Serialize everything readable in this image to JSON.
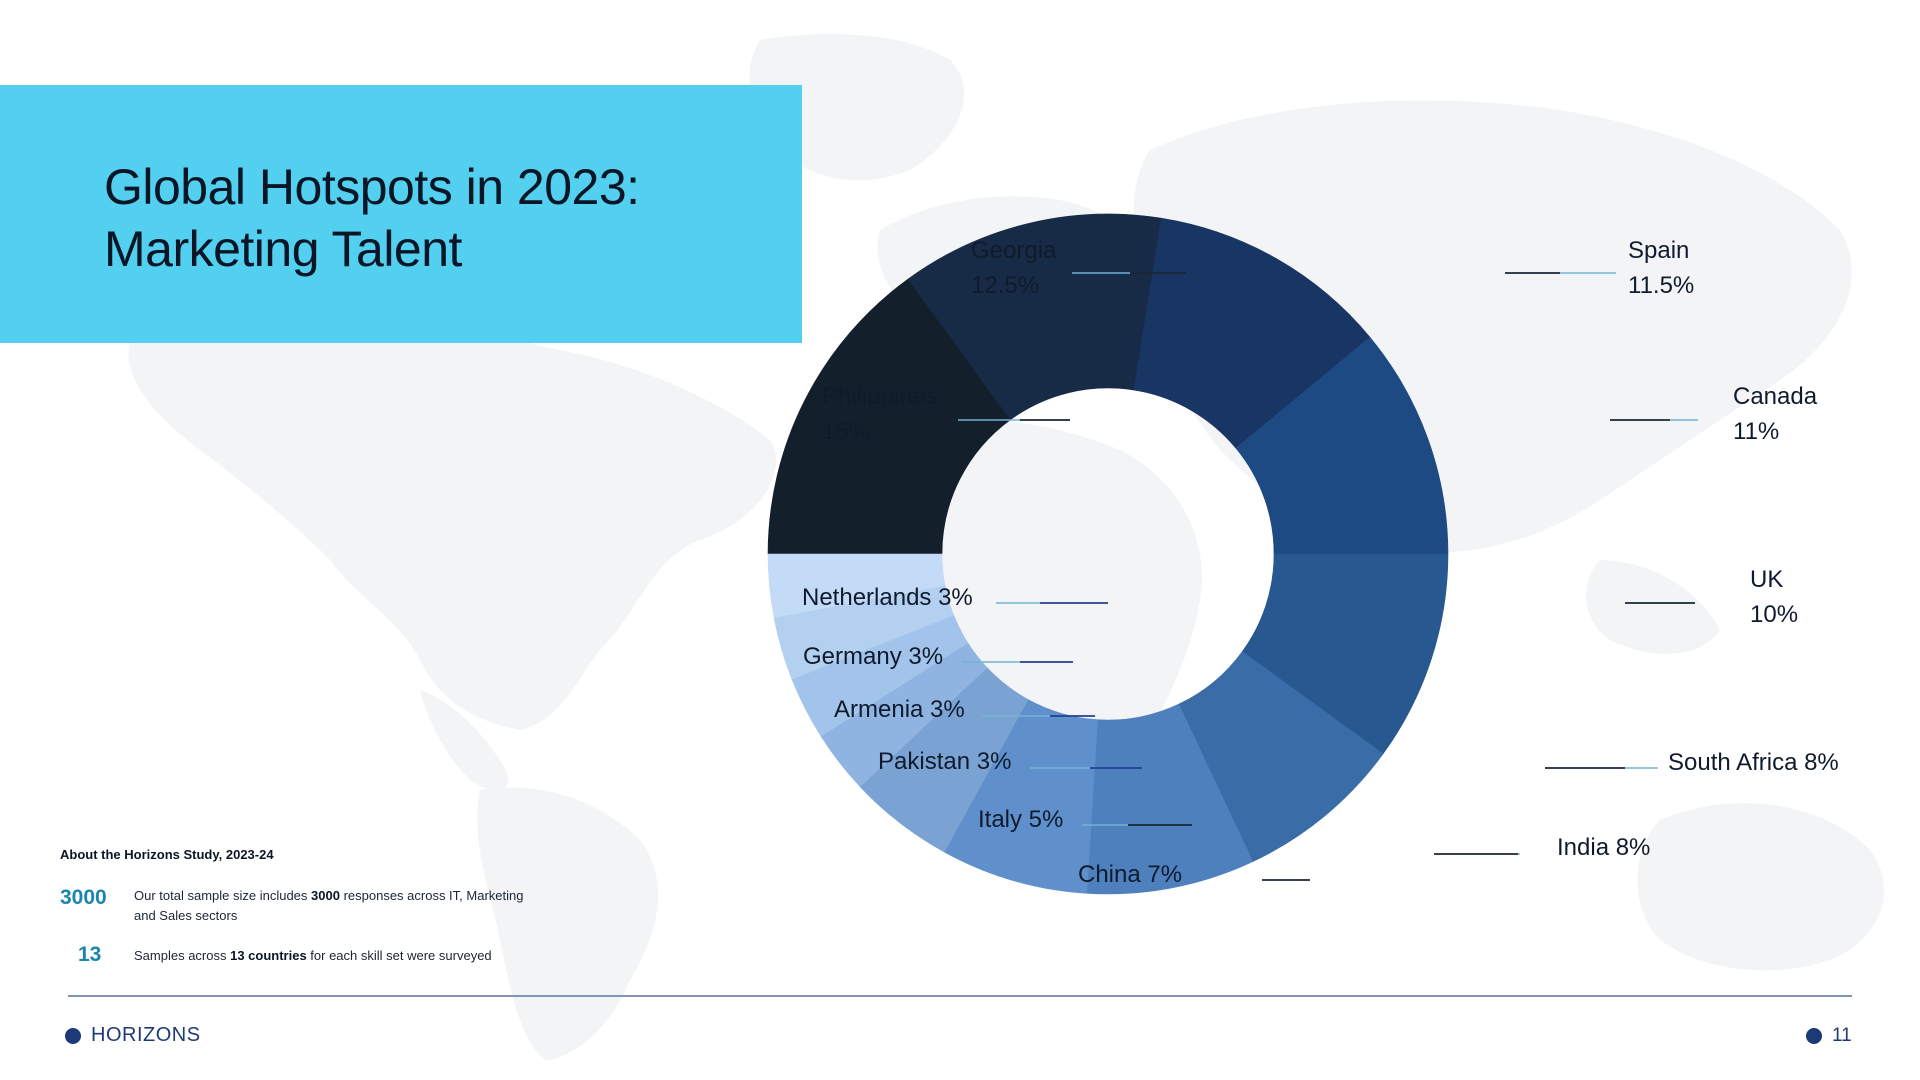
{
  "slide": {
    "title_line_1": "Global Hotspots in 2023:",
    "title_line_2": "Marketing Talent"
  },
  "colors": {
    "title_band": "#53cfef",
    "map": "#f3f4f6",
    "accent": "#1a86ad",
    "brand": "#1d3a78"
  },
  "chart_data": {
    "type": "pie",
    "variant": "donut",
    "title": "",
    "slices": [
      {
        "label": "Philippines",
        "value_label": "15%",
        "value": 15,
        "color": "#141f2c"
      },
      {
        "label": "Georgia",
        "value_label": "12.5%",
        "value": 12.5,
        "color": "#172a46"
      },
      {
        "label": "Spain",
        "value_label": "11.5%",
        "value": 11.5,
        "color": "#183564"
      },
      {
        "label": "Canada",
        "value_label": "11%",
        "value": 11,
        "color": "#1e4a84"
      },
      {
        "label": "UK",
        "value_label": "10%",
        "value": 10,
        "color": "#285890"
      },
      {
        "label": "South Africa",
        "value_label": "8%",
        "value": 8,
        "color": "#3a6ca8"
      },
      {
        "label": "India",
        "value_label": "8%",
        "value": 8,
        "color": "#4f80be"
      },
      {
        "label": "China",
        "value_label": "7%",
        "value": 7,
        "color": "#6090cb"
      },
      {
        "label": "Italy",
        "value_label": "5%",
        "value": 5,
        "color": "#7aa3d4"
      },
      {
        "label": "Pakistan",
        "value_label": "3%",
        "value": 3,
        "color": "#8fb4e1"
      },
      {
        "label": "Armenia",
        "value_label": "3%",
        "value": 3,
        "color": "#a2c3ea"
      },
      {
        "label": "Germany",
        "value_label": "3%",
        "value": 3,
        "color": "#b3d0f1"
      },
      {
        "label": "Netherlands",
        "value_label": "3%",
        "value": 3,
        "color": "#c3dbf7"
      }
    ],
    "legend": "none"
  },
  "about": {
    "title": "About the Horizons Study, 2023-24",
    "stat_1": {
      "number": "3000",
      "text_a": "Our total sample size includes ",
      "text_bold": "3000",
      "text_b": " responses across IT, Marketing and Sales sectors"
    },
    "stat_2": {
      "number": "13",
      "text_a": "Samples across ",
      "text_bold": "13 countries",
      "text_b": " for each skill set were surveyed"
    }
  },
  "footer": {
    "brand": "HORIZONS",
    "page_number": "11"
  }
}
